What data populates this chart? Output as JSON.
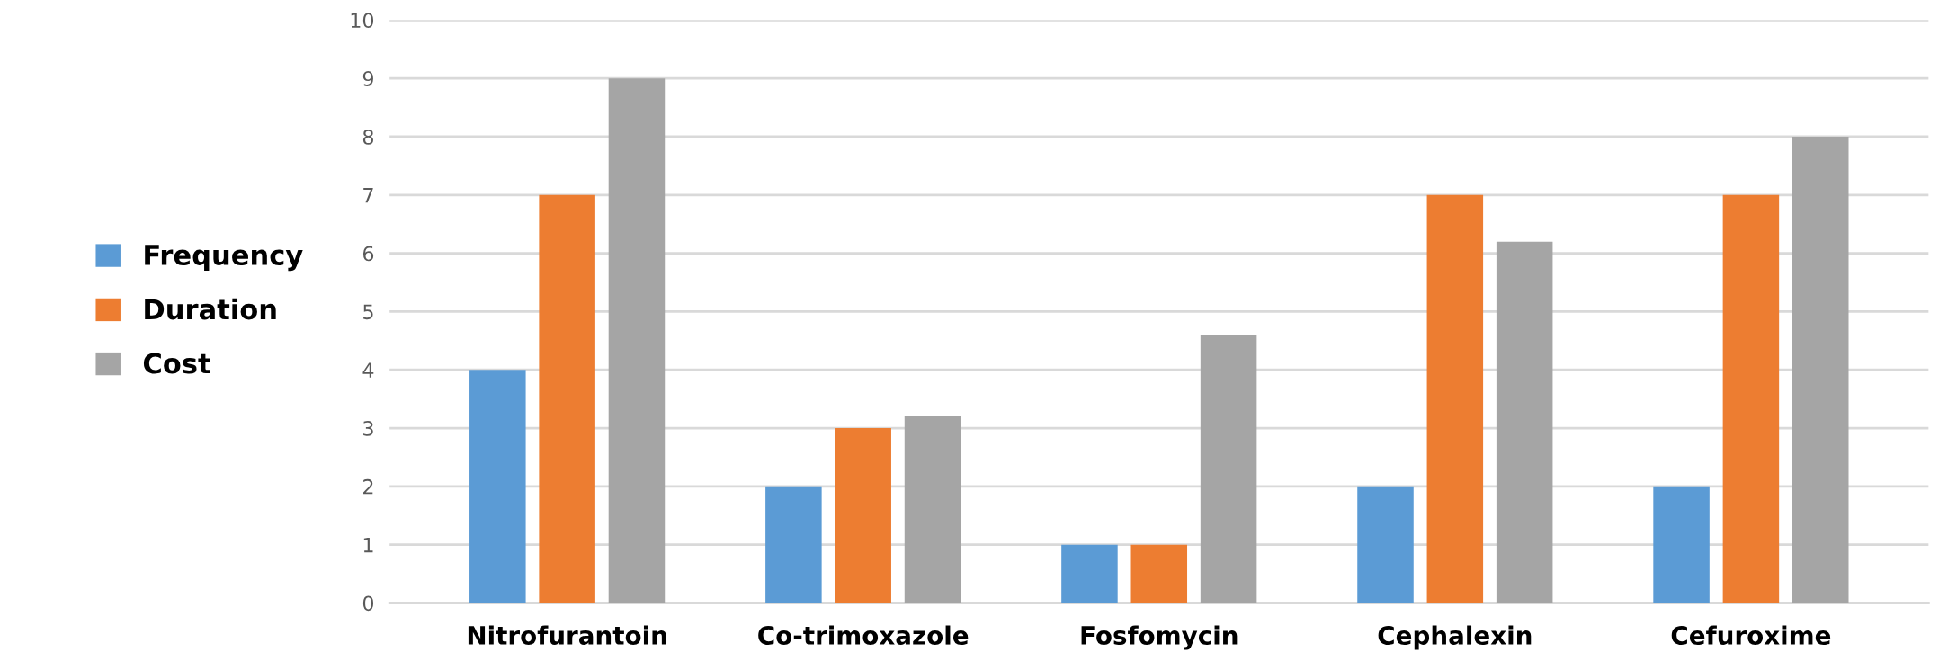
{
  "chart_data": {
    "type": "bar",
    "categories": [
      "Nitrofurantoin",
      "Co-trimoxazole",
      "Fosfomycin",
      "Cephalexin",
      "Cefuroxime"
    ],
    "series": [
      {
        "name": "Frequency",
        "color": "#5b9bd5",
        "values": [
          4,
          2,
          1,
          2,
          2
        ]
      },
      {
        "name": "Duration",
        "color": "#ed7d31",
        "values": [
          7,
          3,
          1,
          7,
          7
        ]
      },
      {
        "name": "Cost",
        "color": "#a5a5a5",
        "values": [
          9,
          3.2,
          4.6,
          6.2,
          8
        ]
      }
    ],
    "ylim": [
      0,
      10
    ],
    "yticks": [
      0,
      1,
      2,
      3,
      4,
      5,
      6,
      7,
      8,
      9,
      10
    ],
    "grid": "y",
    "legend": "left"
  }
}
